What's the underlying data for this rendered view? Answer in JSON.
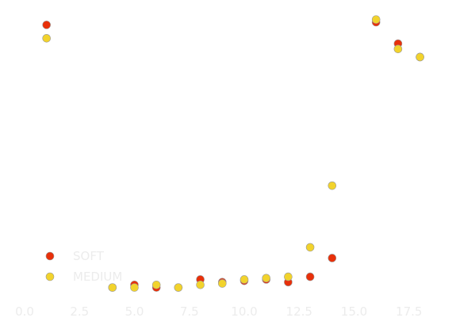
{
  "chart_data": {
    "type": "scatter",
    "title": "",
    "xlabel": "",
    "ylabel": "",
    "xlim": [
      0,
      19
    ],
    "ylim": [
      0,
      1
    ],
    "grid": false,
    "legend_placement": "bottom-left",
    "x_ticks": [
      0.0,
      2.5,
      5.0,
      7.5,
      10.0,
      12.5,
      15.0,
      17.5
    ],
    "x_tick_labels": [
      "0.0",
      "2.5",
      "5.0",
      "7.5",
      "10.0",
      "12.5",
      "15.0",
      "17.5"
    ],
    "series": [
      {
        "name": "SOFT",
        "color": "#e8300a",
        "points": [
          {
            "x": 1,
            "y": 0.99
          },
          {
            "x": 4,
            "y": 0.01
          },
          {
            "x": 5,
            "y": 0.02
          },
          {
            "x": 6,
            "y": 0.01
          },
          {
            "x": 7,
            "y": 0.01
          },
          {
            "x": 8,
            "y": 0.04
          },
          {
            "x": 9,
            "y": 0.03
          },
          {
            "x": 10,
            "y": 0.035
          },
          {
            "x": 11,
            "y": 0.04
          },
          {
            "x": 12,
            "y": 0.03
          },
          {
            "x": 13,
            "y": 0.05
          },
          {
            "x": 14,
            "y": 0.12
          },
          {
            "x": 16,
            "y": 1.0
          },
          {
            "x": 17,
            "y": 0.92
          },
          {
            "x": 18,
            "y": 0.87
          }
        ]
      },
      {
        "name": "MEDIUM",
        "color": "#f2d32c",
        "points": [
          {
            "x": 1,
            "y": 0.94
          },
          {
            "x": 4,
            "y": 0.01
          },
          {
            "x": 5,
            "y": 0.01
          },
          {
            "x": 6,
            "y": 0.02
          },
          {
            "x": 7,
            "y": 0.01
          },
          {
            "x": 8,
            "y": 0.02
          },
          {
            "x": 9,
            "y": 0.025
          },
          {
            "x": 10,
            "y": 0.04
          },
          {
            "x": 11,
            "y": 0.045
          },
          {
            "x": 12,
            "y": 0.05
          },
          {
            "x": 13,
            "y": 0.16
          },
          {
            "x": 14,
            "y": 0.39
          },
          {
            "x": 16,
            "y": 1.01
          },
          {
            "x": 17,
            "y": 0.9
          },
          {
            "x": 18,
            "y": 0.87
          }
        ]
      }
    ]
  }
}
